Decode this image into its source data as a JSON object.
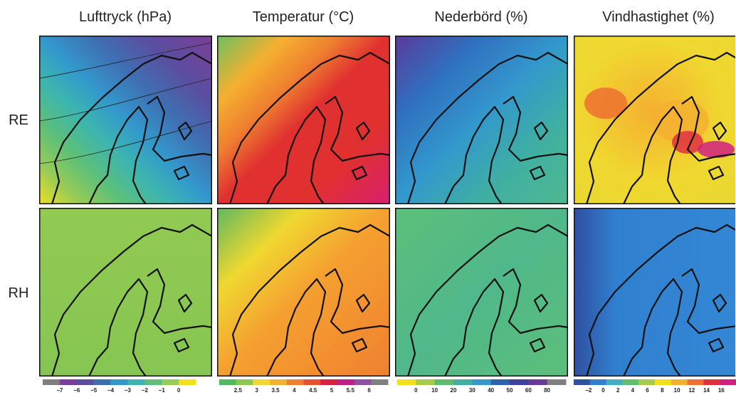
{
  "column_titles": [
    "Lufttryck (hPa)",
    "Temperatur (°C)",
    "Nederbörd (%)",
    "Vindhastighet (%)"
  ],
  "row_labels": [
    "RE",
    "RH"
  ],
  "colorbars": [
    {
      "ticks": [
        {
          "value": -7,
          "label": "−7"
        },
        {
          "value": -6,
          "label": "−6"
        },
        {
          "value": -5,
          "label": "−5"
        },
        {
          "value": -4,
          "label": "−4"
        },
        {
          "value": -3,
          "label": "−3"
        },
        {
          "value": -2,
          "label": "−2"
        },
        {
          "value": -1,
          "label": "−1"
        },
        0
      ],
      "colors": [
        "#7f7f7f",
        "#7b3f98",
        "#5b4ea0",
        "#3f6fb3",
        "#3399cc",
        "#3cb5b0",
        "#5cbf7a",
        "#99cc55",
        "#f0e020"
      ]
    },
    {
      "ticks": [
        2.5,
        3,
        3.5,
        4,
        4.5,
        5,
        5.5,
        6
      ],
      "colors": [
        "#55b860",
        "#8cc850",
        "#f0d830",
        "#f5b030",
        "#ef8030",
        "#e85030",
        "#d82040",
        "#c02080",
        "#9050a0",
        "#808080"
      ]
    },
    {
      "ticks": [
        0,
        10,
        20,
        30,
        40,
        50,
        60,
        80
      ],
      "colors": [
        "#f0e020",
        "#a8cc4a",
        "#60bb70",
        "#40b0a0",
        "#3399cc",
        "#3060b0",
        "#4040a0",
        "#6a3a98",
        "#808080"
      ]
    },
    {
      "ticks": [
        {
          "value": -2,
          "label": "−2"
        },
        0,
        2,
        4,
        6,
        8,
        10,
        12,
        14,
        16
      ],
      "colors": [
        "#3050a0",
        "#3080d0",
        "#40b0c0",
        "#60c070",
        "#a8cc4a",
        "#f0e020",
        "#f5b030",
        "#ef7030",
        "#e03040",
        "#d02080"
      ]
    }
  ]
}
